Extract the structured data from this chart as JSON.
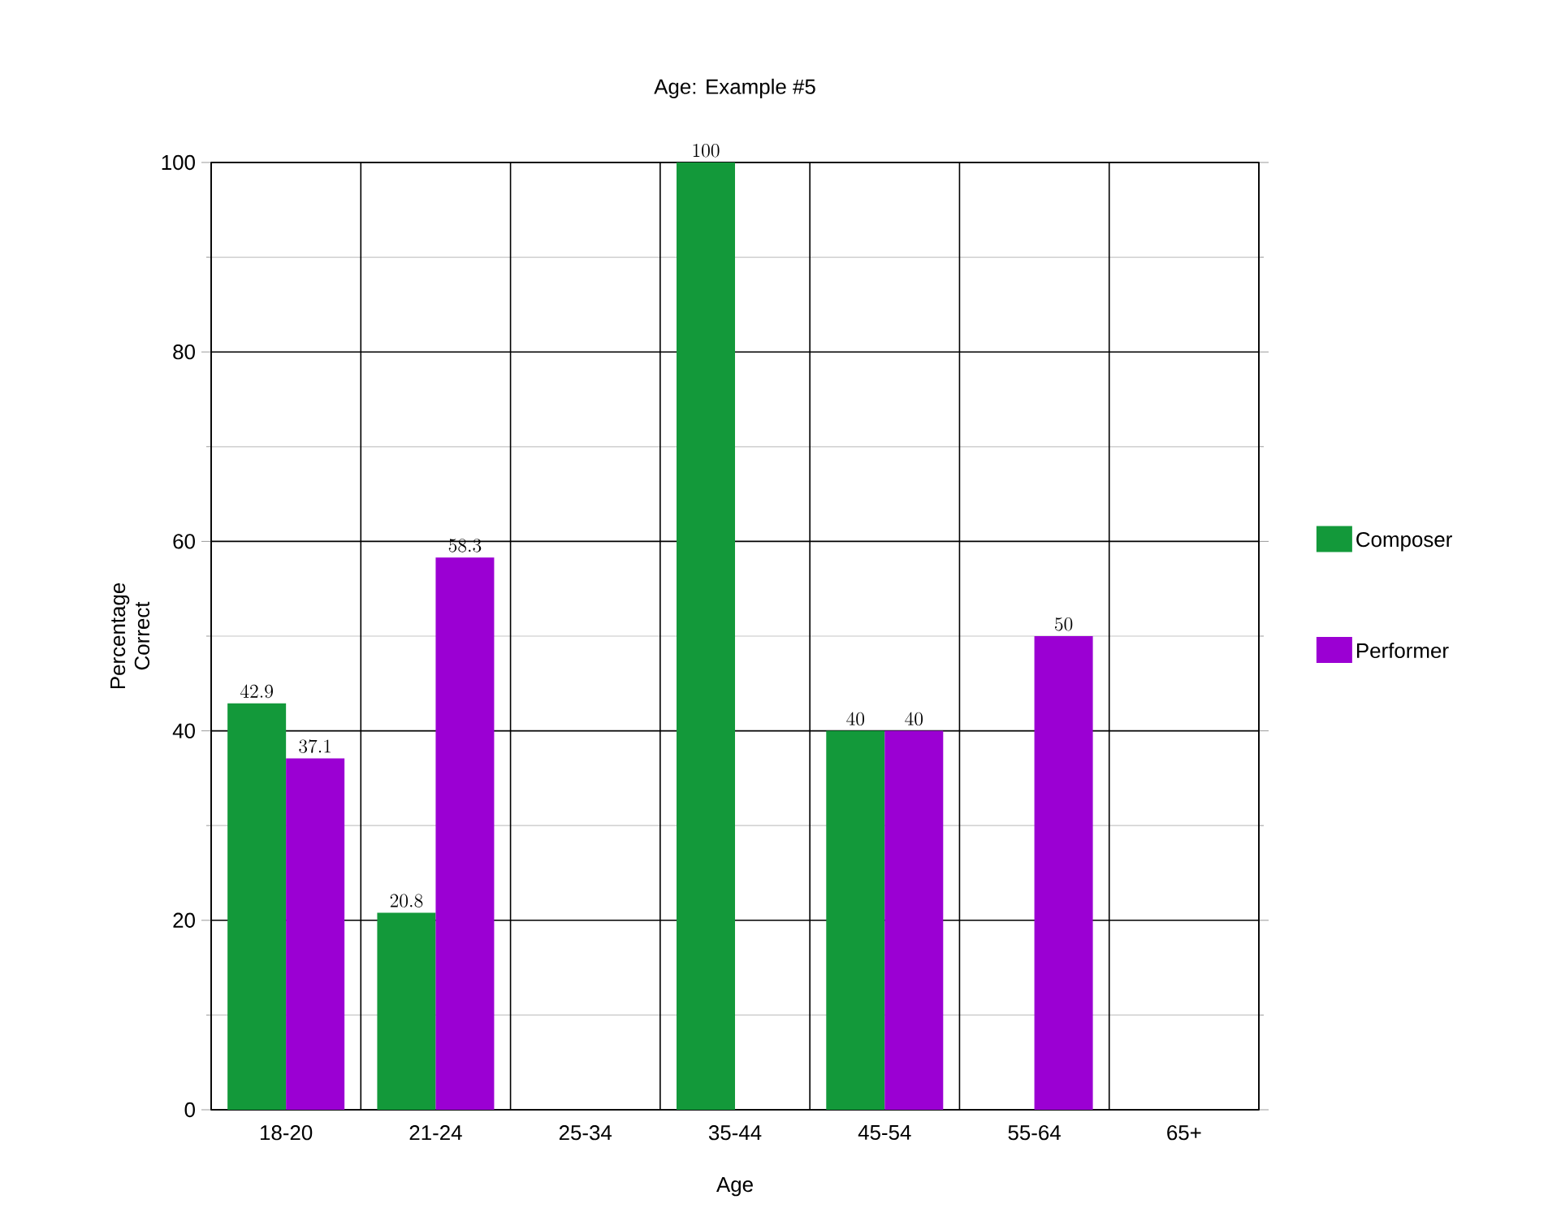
{
  "chart_data": {
    "type": "bar",
    "title": "Age: Example #5",
    "xlabel": "Age",
    "ylabel": "Percentage Correct",
    "categories": [
      "18-20",
      "21-24",
      "25-34",
      "35-44",
      "45-54",
      "55-64",
      "65+"
    ],
    "series": [
      {
        "name": "Composer",
        "color": "#13993a",
        "values": [
          42.9,
          20.8,
          null,
          100,
          40,
          null,
          null
        ]
      },
      {
        "name": "Performer",
        "color": "#9b00d3",
        "values": [
          37.1,
          58.3,
          null,
          null,
          40,
          50,
          null
        ]
      }
    ],
    "ylim": [
      0,
      100
    ],
    "yticks": [
      0,
      20,
      40,
      60,
      80,
      100
    ],
    "grid": true,
    "legend": "right",
    "data_labels": true
  }
}
